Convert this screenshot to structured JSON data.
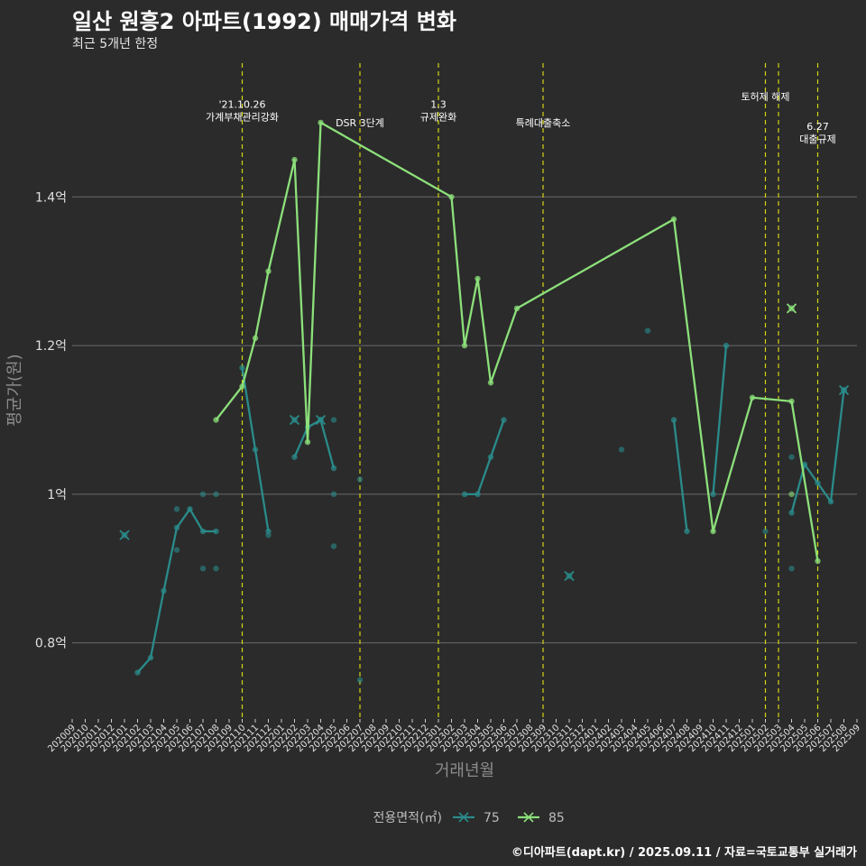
{
  "header": {
    "title": "일산 원흥2 아파트(1992) 매매가격 변화",
    "subtitle": "최근 5개년 한정"
  },
  "footer": "©디아파트(dapt.kr) / 2025.09.11 / 자료=국토교통부 실거래가",
  "chart_data": {
    "type": "line",
    "xlabel": "거래년월",
    "ylabel": "평균가(원)",
    "x_ticks": [
      "202009",
      "202010",
      "202011",
      "202012",
      "202101",
      "202102",
      "202103",
      "202104",
      "202105",
      "202106",
      "202107",
      "202108",
      "202109",
      "202110",
      "202111",
      "202112",
      "202201",
      "202202",
      "202203",
      "202204",
      "202205",
      "202206",
      "202207",
      "202208",
      "202209",
      "202210",
      "202211",
      "202212",
      "202301",
      "202302",
      "202303",
      "202304",
      "202305",
      "202306",
      "202307",
      "202308",
      "202309",
      "202310",
      "202311",
      "202312",
      "202401",
      "202402",
      "202403",
      "202404",
      "202405",
      "202406",
      "202407",
      "202408",
      "202409",
      "202410",
      "202411",
      "202412",
      "202501",
      "202502",
      "202503",
      "202504",
      "202505",
      "202506",
      "202507",
      "202508",
      "202509"
    ],
    "y_ticks": [
      {
        "value": 0.8,
        "label": "0.8억"
      },
      {
        "value": 1.0,
        "label": "1억"
      },
      {
        "value": 1.2,
        "label": "1.2억"
      },
      {
        "value": 1.4,
        "label": "1.4억"
      }
    ],
    "ylim": [
      0.7,
      1.58
    ],
    "grid": true,
    "legend": {
      "title": "전용면적(㎡)",
      "position": "bottom",
      "entries": [
        {
          "name": "75",
          "color": "#2a8b8a"
        },
        {
          "name": "85",
          "color": "#8ce07a"
        }
      ]
    },
    "series": [
      {
        "name": "75",
        "color": "#2a8b8a",
        "line": [
          [
            "202102",
            0.76
          ],
          [
            "202103",
            0.78
          ],
          [
            "202104",
            0.87
          ],
          [
            "202105",
            0.955
          ],
          [
            "202106",
            0.98
          ],
          [
            "202107",
            0.95
          ],
          [
            "202108",
            0.95
          ],
          [
            "202109",
            null
          ],
          [
            "202110",
            1.17
          ],
          [
            "202111",
            1.06
          ],
          [
            "202112",
            0.95
          ],
          [
            "202201",
            null
          ],
          [
            "202202",
            1.05
          ],
          [
            "202203",
            1.09
          ],
          [
            "202204",
            1.1
          ],
          [
            "202205",
            1.035
          ],
          [
            "202206",
            null
          ],
          [
            "202303",
            1.0
          ],
          [
            "202304",
            1.0
          ],
          [
            "202305",
            1.05
          ],
          [
            "202306",
            1.1
          ],
          [
            "202307",
            null
          ],
          [
            "202407",
            1.1
          ],
          [
            "202408",
            0.95
          ],
          [
            "202409",
            null
          ],
          [
            "202410",
            1.0
          ],
          [
            "202411",
            1.2
          ],
          [
            "202412",
            null
          ],
          [
            "202504",
            0.975
          ],
          [
            "202505",
            1.04
          ],
          [
            "202506",
            1.015
          ],
          [
            "202507",
            0.99
          ],
          [
            "202508",
            1.14
          ]
        ],
        "points": [
          [
            "202105",
            0.98
          ],
          [
            "202105",
            0.925
          ],
          [
            "202107",
            1.0
          ],
          [
            "202107",
            0.9
          ],
          [
            "202108",
            1.0
          ],
          [
            "202108",
            0.9
          ],
          [
            "202112",
            0.945
          ],
          [
            "202205",
            1.1
          ],
          [
            "202205",
            1.0
          ],
          [
            "202205",
            0.93
          ],
          [
            "202207",
            1.02
          ],
          [
            "202207",
            0.75
          ],
          [
            "202403",
            1.06
          ],
          [
            "202405",
            1.22
          ],
          [
            "202502",
            0.95
          ],
          [
            "202504",
            1.05
          ],
          [
            "202504",
            0.9
          ]
        ],
        "crosses": [
          [
            "202101",
            0.945
          ],
          [
            "202202",
            1.1
          ],
          [
            "202204",
            1.1
          ],
          [
            "202311",
            0.89
          ],
          [
            "202508",
            1.14
          ]
        ]
      },
      {
        "name": "85",
        "color": "#8ce07a",
        "line": [
          [
            "202108",
            1.1
          ],
          [
            "202110",
            1.145
          ],
          [
            "202111",
            1.21
          ],
          [
            "202112",
            1.3
          ],
          [
            "202202",
            1.45
          ],
          [
            "202203",
            1.07
          ],
          [
            "202204",
            1.5
          ],
          [
            "202302",
            1.4
          ],
          [
            "202303",
            1.2
          ],
          [
            "202304",
            1.29
          ],
          [
            "202305",
            1.15
          ],
          [
            "202307",
            1.25
          ],
          [
            "202407",
            1.37
          ],
          [
            "202410",
            0.95
          ],
          [
            "202501",
            1.13
          ],
          [
            "202504",
            1.125
          ],
          [
            "202506",
            0.91
          ]
        ],
        "points": [
          [
            "202504",
            1.0
          ]
        ],
        "crosses": [
          [
            "202504",
            1.25
          ]
        ]
      }
    ],
    "events": [
      {
        "x": "202110",
        "label": "'21.10.26\n가계부채관리강화",
        "label_y": 1.52
      },
      {
        "x": "202207",
        "label": "DSR 3단계",
        "label_y": 1.495
      },
      {
        "x": "202301",
        "label": "1.3\n규제완화",
        "label_y": 1.52
      },
      {
        "x": "202309",
        "label": "특례대출축소",
        "label_y": 1.495
      },
      {
        "x": "202502",
        "label": "토허제 해제",
        "label_y": 1.53
      },
      {
        "x": "202503",
        "label": "",
        "label_y": 1.53
      },
      {
        "x": "202506",
        "label": "6.27\n대출규제",
        "label_y": 1.49
      }
    ]
  }
}
